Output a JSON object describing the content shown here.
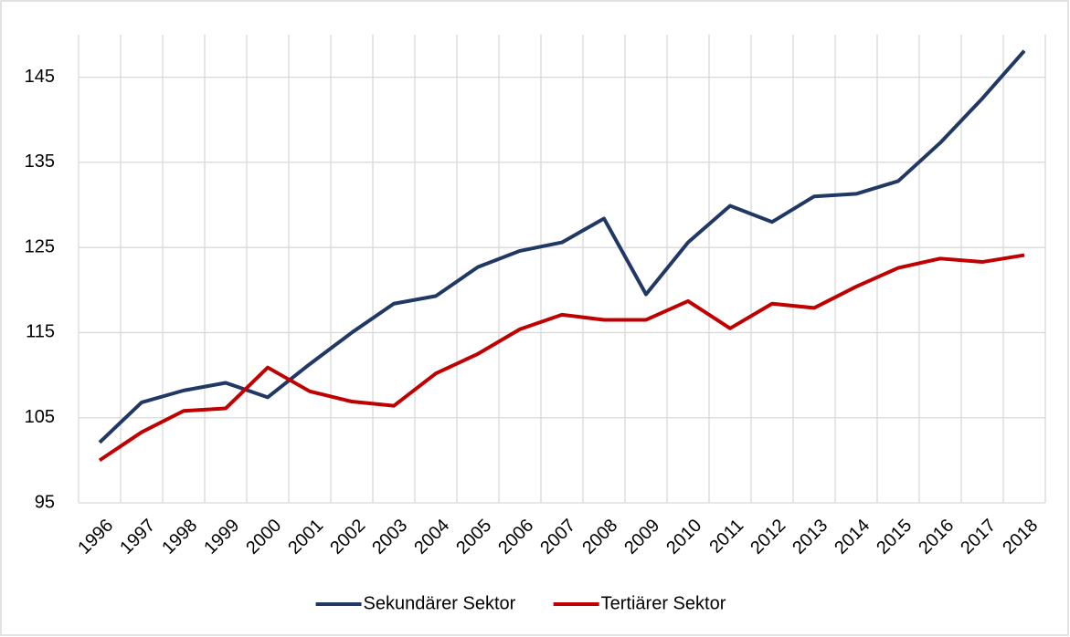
{
  "chart_data": {
    "type": "line",
    "categories": [
      "1996",
      "1997",
      "1998",
      "1999",
      "2000",
      "2001",
      "2002",
      "2003",
      "2004",
      "2005",
      "2006",
      "2007",
      "2008",
      "2009",
      "2010",
      "2011",
      "2012",
      "2013",
      "2014",
      "2015",
      "2016",
      "2017",
      "2018"
    ],
    "series": [
      {
        "name": "Sekundärer Sektor",
        "color": "#203864",
        "values": [
          102.1,
          106.8,
          108.2,
          109.1,
          107.4,
          111.3,
          115.0,
          118.4,
          119.3,
          122.7,
          124.6,
          125.6,
          128.4,
          119.5,
          125.6,
          129.9,
          128.0,
          131.0,
          131.3,
          132.8,
          137.3,
          142.5,
          148.1
        ]
      },
      {
        "name": "Tertiärer Sektor",
        "color": "#c00000",
        "values": [
          100.0,
          103.3,
          105.8,
          106.1,
          110.9,
          108.1,
          106.9,
          106.4,
          110.2,
          112.5,
          115.4,
          117.1,
          116.5,
          116.5,
          118.7,
          115.5,
          118.4,
          117.9,
          120.4,
          122.6,
          123.7,
          123.3,
          124.1
        ]
      }
    ],
    "ylim": [
      95,
      150
    ],
    "yticks": [
      95,
      105,
      115,
      125,
      135,
      145
    ],
    "grid": true,
    "legend": "bottom"
  }
}
